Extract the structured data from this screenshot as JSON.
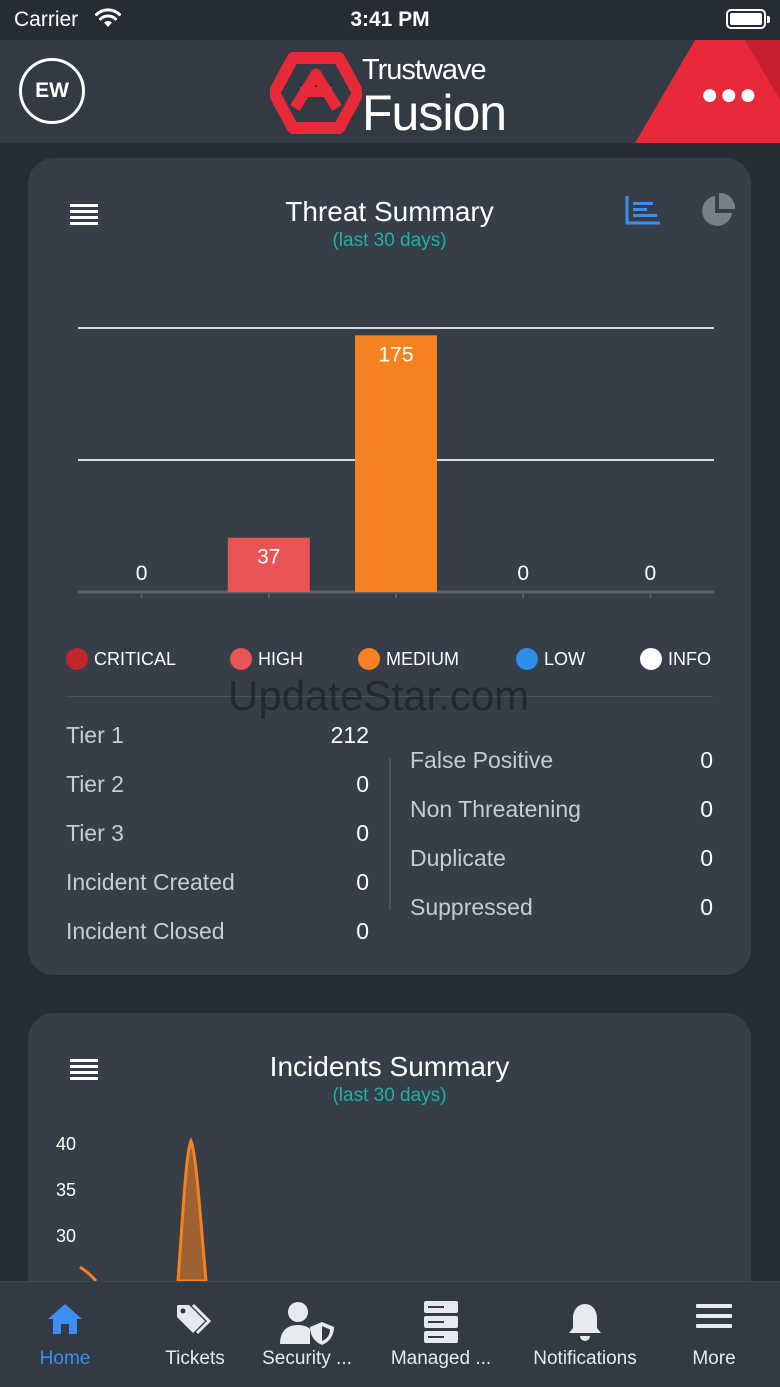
{
  "status_bar": {
    "carrier": "Carrier",
    "time": "3:41 PM"
  },
  "header": {
    "avatar_initials": "EW",
    "logo_line1": "Trustwave",
    "logo_line2": "Fusion",
    "menu_icon": "more-dots-icon",
    "accent_color": "#e8293a"
  },
  "threat_summary": {
    "title": "Threat Summary",
    "subtitle": "(last 30 days)",
    "view_icons": [
      "bar-chart-icon",
      "pie-chart-icon"
    ],
    "legend": [
      {
        "label": "CRITICAL",
        "color": "#c4262e"
      },
      {
        "label": "HIGH",
        "color": "#ea5455"
      },
      {
        "label": "MEDIUM",
        "color": "#f58220"
      },
      {
        "label": "LOW",
        "color": "#2f8ee8"
      },
      {
        "label": "INFO",
        "color": "#ffffff"
      }
    ],
    "tiers": [
      {
        "label": "Tier 1",
        "value": "212"
      },
      {
        "label": "Tier 2",
        "value": "0"
      },
      {
        "label": "Tier 3",
        "value": "0"
      },
      {
        "label": "Incident Created",
        "value": "0"
      },
      {
        "label": "Incident Closed",
        "value": "0"
      }
    ],
    "dispositions": [
      {
        "label": "False Positive",
        "value": "0"
      },
      {
        "label": "Non Threatening",
        "value": "0"
      },
      {
        "label": "Duplicate",
        "value": "0"
      },
      {
        "label": "Suppressed",
        "value": "0"
      }
    ]
  },
  "chart_data": [
    {
      "type": "bar",
      "categories": [
        "CRITICAL",
        "HIGH",
        "MEDIUM",
        "LOW",
        "INFO"
      ],
      "values": [
        0,
        37,
        175,
        0,
        0
      ],
      "colors": [
        "#c4262e",
        "#ea5455",
        "#f58220",
        "#2f8ee8",
        "#ffffff"
      ],
      "data_labels": [
        "0",
        "37",
        "175",
        "0",
        "0"
      ],
      "ylim": [
        0,
        180
      ],
      "grid": true,
      "legend": "bottom"
    },
    {
      "type": "area",
      "yticks": [
        "40",
        "35",
        "30"
      ],
      "visible_ylim": [
        28,
        42
      ],
      "peak_value": 41,
      "color": "#f58220"
    }
  ],
  "incidents_summary": {
    "title": "Incidents Summary",
    "subtitle": "(last 30 days)"
  },
  "watermark": "UpdateStar.com",
  "tab_bar": [
    {
      "label": "Home",
      "icon": "home-icon",
      "active": true
    },
    {
      "label": "Tickets",
      "icon": "tags-icon",
      "active": false
    },
    {
      "label": "Security ...",
      "icon": "user-shield-icon",
      "active": false
    },
    {
      "label": "Managed ...",
      "icon": "server-icon",
      "active": false
    },
    {
      "label": "Notifications",
      "icon": "bell-icon",
      "active": false
    },
    {
      "label": "More",
      "icon": "hamburger-menu-icon",
      "active": false
    }
  ]
}
